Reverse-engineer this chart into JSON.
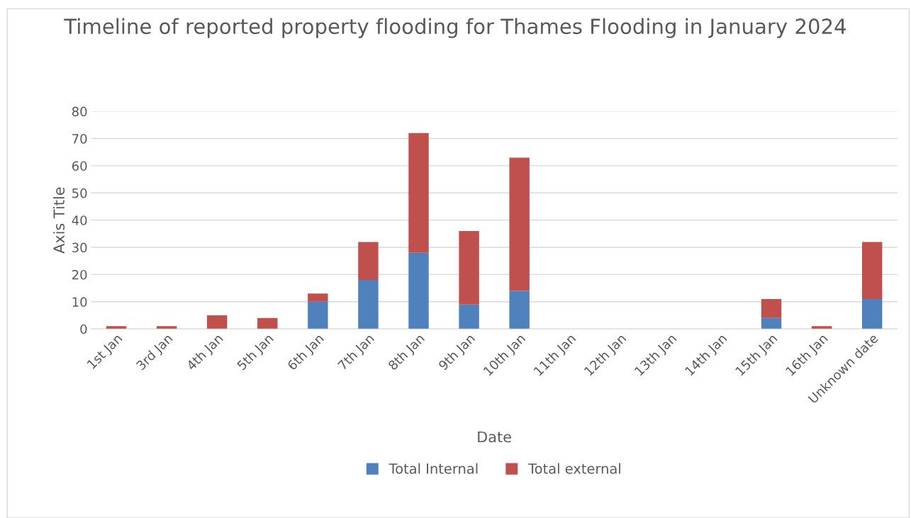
{
  "chart_data": {
    "type": "bar",
    "title": "Timeline of reported property flooding for Thames Flooding in January 2024",
    "xlabel": "Date",
    "ylabel": "Axis Title",
    "categories": [
      "1st Jan",
      "3rd Jan",
      "4th Jan",
      "5th Jan",
      "6th Jan",
      "7th Jan",
      "8th Jan",
      "9th Jan",
      "10th Jan",
      "11th Jan",
      "12th Jan",
      "13th Jan",
      "14th Jan",
      "15th Jan",
      "16th Jan",
      "Unknown date"
    ],
    "series": [
      {
        "name": "Total Internal",
        "color": "#4f81bd",
        "values": [
          0,
          0,
          0,
          0,
          10,
          18,
          28,
          9,
          14,
          0,
          0,
          0,
          0,
          4,
          0,
          11
        ]
      },
      {
        "name": "Total external",
        "color": "#c0504d",
        "values": [
          1,
          1,
          5,
          4,
          3,
          14,
          44,
          27,
          49,
          0,
          0,
          0,
          0,
          7,
          1,
          21
        ]
      }
    ],
    "stacked": true,
    "ylim": [
      0,
      80
    ],
    "yticks": [
      0,
      10,
      20,
      30,
      40,
      50,
      60,
      70,
      80
    ],
    "grid": "y",
    "legend": "bottom"
  }
}
